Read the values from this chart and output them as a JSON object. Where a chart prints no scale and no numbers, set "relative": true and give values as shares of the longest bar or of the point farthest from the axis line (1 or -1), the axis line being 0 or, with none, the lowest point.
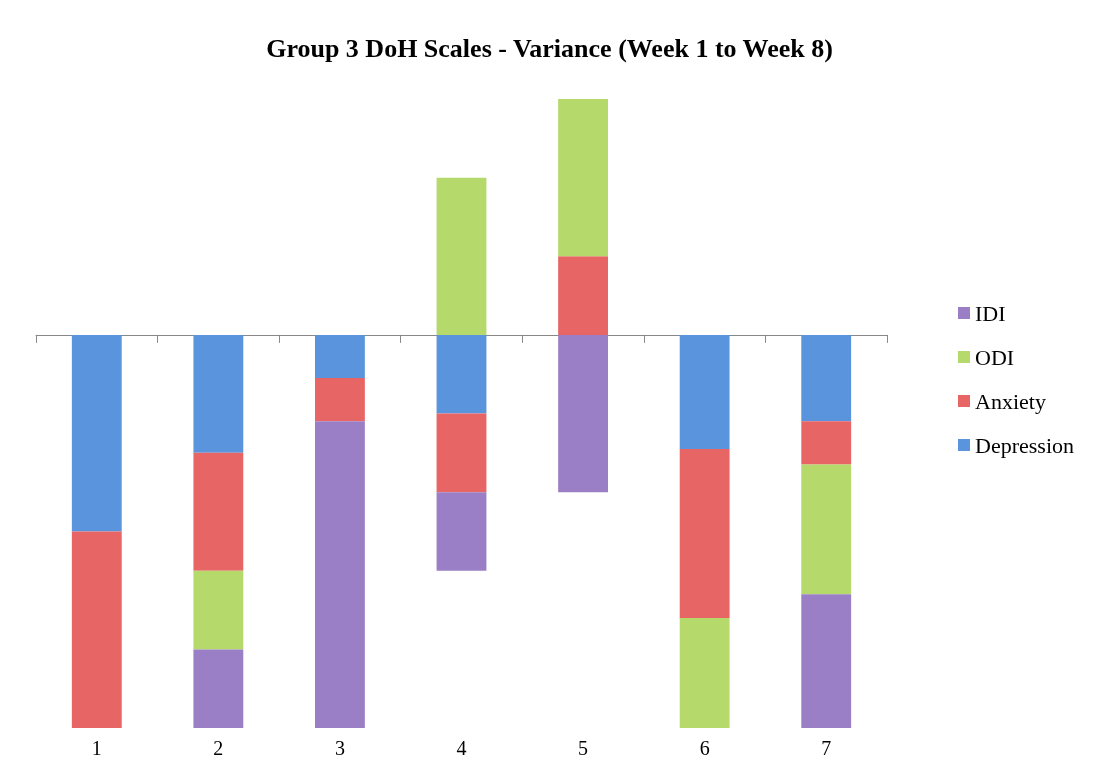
{
  "chart_data": {
    "type": "bar",
    "title": "Group 3 DoH Scales - Variance (Week 1 to Week 8)",
    "categories": [
      "1",
      "2",
      "3",
      "4",
      "5",
      "6",
      "7"
    ],
    "stacked": true,
    "relative": true,
    "legend": "right",
    "grid": false,
    "series": [
      {
        "name": "Depression",
        "color": "#5a94dc",
        "values": [
          -0.5,
          -0.3,
          -0.11,
          -0.2,
          null,
          -0.29,
          -0.22
        ]
      },
      {
        "name": "Anxiety",
        "color": "#e86565",
        "values": [
          -0.5,
          -0.3,
          -0.11,
          -0.2,
          0.2,
          -0.43,
          -0.11
        ]
      },
      {
        "name": "ODI",
        "color": "#b5d96a",
        "values": [
          null,
          -0.2,
          null,
          0.4,
          0.4,
          -0.28,
          -0.33
        ]
      },
      {
        "name": "IDI",
        "color": "#9b7fc6",
        "values": [
          null,
          -0.2,
          -0.78,
          -0.2,
          -0.4,
          null,
          -0.34
        ]
      }
    ]
  }
}
